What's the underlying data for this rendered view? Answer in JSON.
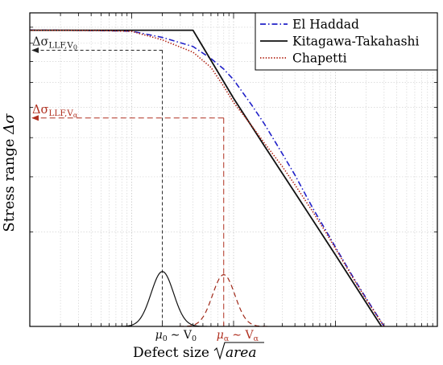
{
  "chart_data": {
    "type": "line",
    "title": "",
    "xlabel": "Defect size √area",
    "xlabel_text": "Defect size",
    "xlabel_math": "area",
    "ylabel": "Stress range Δσ",
    "ylabel_text": "Stress range",
    "ylabel_math": "Δσ",
    "x_scale": "log",
    "y_scale": "log",
    "xlim": [
      1,
      10000
    ],
    "ylim": [
      1,
      10
    ],
    "grid": true,
    "tick_labels_shown": false,
    "legend": {
      "placement": "top-right"
    },
    "series": [
      {
        "name": "El Haddad",
        "style": "dash-dot",
        "color": "#2020c8",
        "x": [
          1,
          2,
          5,
          10,
          20,
          40,
          60,
          80,
          100,
          150,
          200,
          300,
          400,
          600,
          800,
          1000,
          1500,
          2000,
          3000,
          4000
        ],
        "y": [
          8.81,
          8.8,
          8.78,
          8.74,
          8.35,
          7.81,
          7.15,
          6.62,
          6.12,
          5.09,
          4.43,
          3.56,
          3.04,
          2.38,
          2.03,
          1.79,
          1.43,
          1.23,
          1.0,
          0.87
        ]
      },
      {
        "name": "Kitagawa-Takahashi",
        "style": "solid",
        "color": "#111111",
        "x": [
          1,
          20,
          40,
          100,
          200,
          400,
          1000,
          2000,
          4000
        ],
        "y": [
          8.8,
          8.8,
          8.8,
          5.34,
          3.77,
          2.67,
          1.69,
          1.19,
          0.84
        ]
      },
      {
        "name": "Chapetti",
        "style": "dotted",
        "color": "#b02010",
        "x": [
          1,
          2,
          5,
          10,
          20,
          40,
          60,
          80,
          100,
          150,
          200,
          300,
          400,
          600,
          800,
          1000,
          1500,
          2000,
          3000,
          4000
        ],
        "y": [
          8.8,
          8.8,
          8.78,
          8.73,
          8.2,
          7.49,
          6.7,
          5.83,
          5.18,
          4.37,
          3.85,
          3.24,
          2.83,
          2.32,
          2.0,
          1.77,
          1.42,
          1.22,
          1.0,
          0.87
        ]
      }
    ],
    "annotations": [
      {
        "id": "llf-v0",
        "text": "Δσ",
        "sub": "LLF,V",
        "subsub": "0",
        "y": 7.6,
        "x": 20,
        "color": "#222222"
      },
      {
        "id": "llf-va",
        "text": "Δσ",
        "sub": "LLF,V",
        "subsub": "α",
        "y": 4.62,
        "x": 80,
        "color": "#b03020"
      },
      {
        "id": "mu0",
        "text": "μ₀ ∼ V₀",
        "main": "μ",
        "main_sub": "0",
        "tail": "∼ V",
        "tail_sub": "0",
        "x": 20,
        "color": "#111111"
      },
      {
        "id": "mua",
        "text": "μα ∼ Vα",
        "main": "μ",
        "main_sub": "α",
        "tail": "∼ V",
        "tail_sub": "α",
        "x": 80,
        "color": "#b03020"
      }
    ],
    "distributions": [
      {
        "name": "",
        "center_x": 20,
        "peak_height_frac": 0.175,
        "width_decades": 0.11,
        "style": "solid",
        "color": "#111111"
      },
      {
        "name": "",
        "center_x": 80,
        "peak_height_frac": 0.165,
        "width_decades": 0.11,
        "style": "dashed",
        "color": "#a02818"
      }
    ]
  }
}
